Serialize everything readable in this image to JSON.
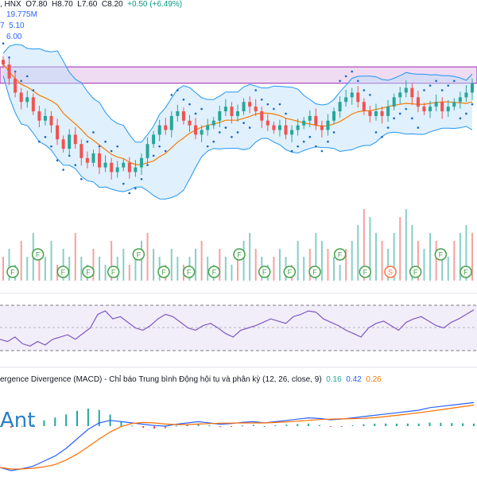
{
  "header": {
    "exchange": ", HNX",
    "o": "O7.80",
    "h": "H8.70",
    "l": "L7.60",
    "c": "C8.20",
    "change": "+0.50 (+6.49%)",
    "ind1": "19.775M",
    "ind2_prefix": "7",
    "ind2": "5.10",
    "ind3": "6.00"
  },
  "macd_header": {
    "title": "ergence Divergence (MACD) - Chỉ báo Trung bình Động hội tụ và phân kỳ (12, 26, close, 9)",
    "hist": "0.16",
    "macd": "0.42",
    "signal": "0.26"
  },
  "watermark": "Ant",
  "colors": {
    "up": "#26a69a",
    "down": "#ef5350",
    "band": "#2196f3",
    "band_fill": "#bbdefb",
    "ma": "#f57c00",
    "sar": "#1565c0",
    "resistance": "#9c27b0",
    "rsi": "#7e57c2",
    "macd": "#2962ff",
    "signal": "#ff6d00"
  },
  "chart_data": {
    "type": "candlestick",
    "price": {
      "close": [
        8.6,
        8.3,
        8.0,
        7.8,
        7.9,
        7.6,
        7.4,
        7.5,
        7.3,
        7.0,
        6.8,
        7.1,
        6.9,
        6.6,
        6.5,
        6.7,
        6.4,
        6.5,
        6.3,
        6.4,
        6.5,
        6.3,
        6.4,
        6.6,
        6.9,
        7.1,
        7.3,
        7.2,
        7.5,
        7.6,
        7.4,
        7.3,
        7.1,
        7.2,
        7.3,
        7.4,
        7.6,
        7.7,
        7.5,
        7.6,
        7.8,
        7.7,
        7.6,
        7.4,
        7.3,
        7.2,
        7.3,
        7.1,
        7.2,
        7.3,
        7.4,
        7.5,
        7.3,
        7.2,
        7.4,
        7.6,
        7.8,
        7.9,
        8.0,
        7.8,
        7.6,
        7.5,
        7.6,
        7.5,
        7.7,
        7.9,
        8.0,
        8.1,
        7.9,
        7.7,
        7.6,
        7.7,
        7.8,
        7.6,
        7.7,
        7.8,
        7.9,
        8.0,
        8.2
      ],
      "resistance_zone": [
        8.2,
        8.55
      ]
    },
    "volume": [
      3,
      4,
      2,
      5,
      3,
      6,
      4,
      3,
      5,
      2,
      4,
      3,
      6,
      3,
      2,
      4,
      3,
      2,
      5,
      3,
      4,
      2,
      3,
      5,
      6,
      4,
      3,
      2,
      4,
      3,
      2,
      3,
      4,
      5,
      3,
      2,
      4,
      3,
      2,
      3,
      5,
      6,
      4,
      3,
      2,
      3,
      4,
      3,
      2,
      5,
      3,
      4,
      6,
      5,
      4,
      3,
      2,
      4,
      5,
      7,
      9,
      8,
      6,
      5,
      4,
      6,
      8,
      9,
      7,
      5,
      4,
      6,
      5,
      4,
      3,
      5,
      6,
      7,
      6
    ],
    "rsi": [
      40,
      38,
      42,
      36,
      34,
      38,
      35,
      40,
      42,
      44,
      40,
      45,
      50,
      62,
      65,
      58,
      60,
      55,
      50,
      48,
      52,
      58,
      62,
      60,
      55,
      50,
      48,
      52,
      54,
      50,
      45,
      42,
      48,
      50,
      52,
      55,
      58,
      56,
      54,
      60,
      62,
      65,
      64,
      58,
      55,
      52,
      48,
      45,
      42,
      50,
      54,
      56,
      52,
      48,
      55,
      58,
      60,
      56,
      52,
      50,
      55,
      58,
      62,
      66
    ],
    "macd": [
      -0.6,
      -0.65,
      -0.62,
      -0.58,
      -0.5,
      -0.42,
      -0.3,
      -0.15,
      0.0,
      0.1,
      0.14,
      0.12,
      0.1,
      0.08,
      0.06,
      0.05,
      0.08,
      0.1,
      0.12,
      0.1,
      0.08,
      0.09,
      0.11,
      0.12,
      0.1,
      0.12,
      0.14,
      0.16,
      0.18,
      0.17,
      0.15,
      0.16,
      0.18,
      0.2,
      0.22,
      0.24,
      0.26,
      0.28,
      0.3,
      0.34,
      0.36,
      0.38,
      0.4,
      0.42
    ],
    "events": [
      "F",
      "F",
      "F",
      "F",
      "F",
      "F",
      "F",
      "F",
      "F",
      "F",
      "F",
      "F",
      "F",
      "F",
      "F",
      "S",
      "F",
      "F",
      "F"
    ]
  }
}
